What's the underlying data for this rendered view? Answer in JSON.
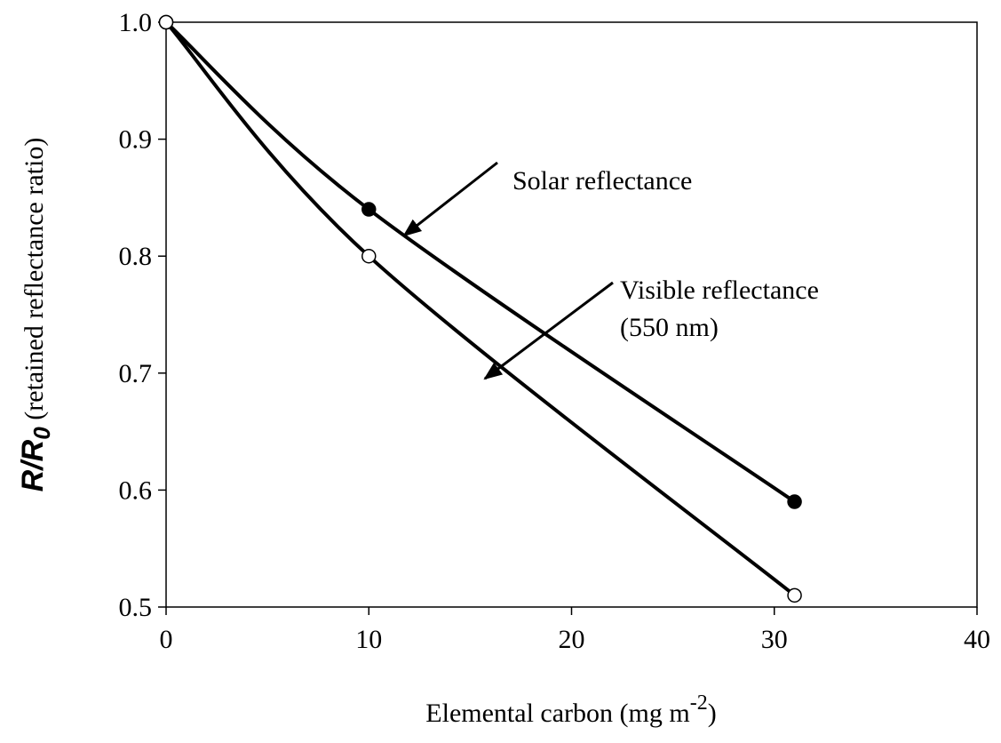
{
  "chart_data": {
    "type": "line",
    "xlabel": {
      "text": "Elemental carbon (mg m",
      "sup": "-2",
      "end": ")"
    },
    "ylabel": {
      "main": "R/R",
      "sub": "0",
      "rest": " (retained reflectance ratio)"
    },
    "series": [
      {
        "name": "Solar reflectance",
        "color": "#000000",
        "marker_fill": "#000000",
        "x": [
          0,
          10,
          31
        ],
        "values": [
          1.0,
          0.84,
          0.59
        ]
      },
      {
        "name": "Visible reflectance",
        "color": "#000000",
        "marker_fill": "#ffffff",
        "x": [
          0,
          10,
          31
        ],
        "values": [
          1.0,
          0.8,
          0.51
        ]
      }
    ],
    "annotations": [
      "Solar reflectance",
      "Visible reflectance",
      "(550 nm)"
    ],
    "xlim": [
      0,
      40
    ],
    "xticks": [
      0,
      10,
      20,
      30,
      40
    ],
    "ylim": [
      0.5,
      1.0
    ],
    "yticks": [
      {
        "value": 0.5,
        "label": "0.5"
      },
      {
        "value": 0.6,
        "label": "0.6"
      },
      {
        "value": 0.7,
        "label": "0.7"
      },
      {
        "value": 0.8,
        "label": "0.8"
      },
      {
        "value": 0.9,
        "label": "0.9"
      },
      {
        "value": 1.0,
        "label": "1.0"
      }
    ],
    "grid": false
  }
}
